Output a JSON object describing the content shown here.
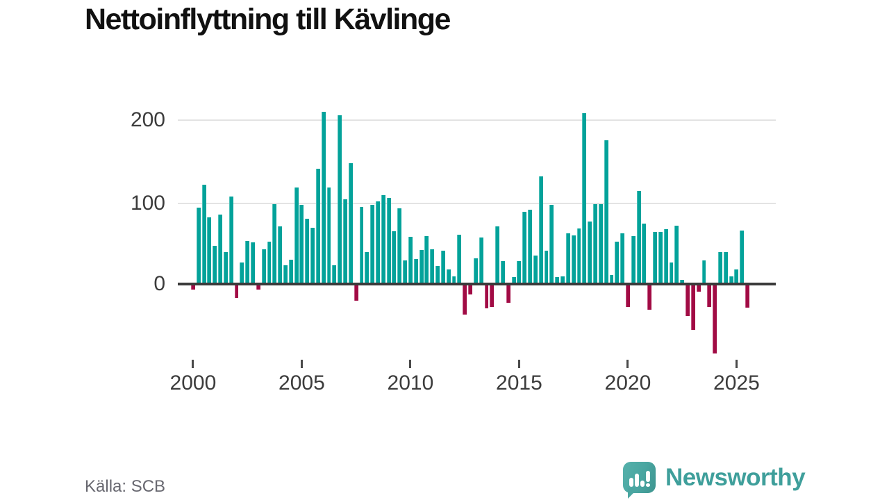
{
  "title": "Nettoinflyttning till Kävlinge",
  "source": "Källa: SCB",
  "logo": {
    "text": "Newsworthy"
  },
  "colors": {
    "positive_bar": "#03a29a",
    "positive_bar_edge": "#4cc0b8",
    "negative_bar": "#a10b44",
    "negative_bar_edge": "#c25380",
    "axis": "#3b3b3b",
    "grid": "#e3e3e3",
    "logo_teal": "#4aa6a1"
  },
  "y_axis": {
    "tick_labels": [
      "200",
      "100",
      "0"
    ],
    "tick_values": [
      200,
      100,
      0
    ]
  },
  "x_axis": {
    "tick_labels": [
      "2000",
      "2005",
      "2010",
      "2015",
      "2020",
      "2025"
    ],
    "tick_years": [
      2000,
      2005,
      2010,
      2015,
      2020,
      2025
    ]
  },
  "chart_data": {
    "type": "bar",
    "title": "Nettoinflyttning till Kävlinge",
    "ylabel": "",
    "xlabel": "",
    "frequency": "quarterly",
    "start_period": "2000Q1",
    "end_period": "2025Q3",
    "grid": "horizontal",
    "ylim": [
      -100,
      235
    ],
    "y_ticks": [
      0,
      100,
      200
    ],
    "x_ticks": [
      2000,
      2005,
      2010,
      2015,
      2020,
      2025
    ],
    "values": [
      -5,
      92,
      120,
      80,
      45,
      83,
      37,
      105,
      -15,
      25,
      51,
      49,
      -5,
      41,
      50,
      96,
      69,
      21,
      28,
      116,
      95,
      78,
      67,
      139,
      209,
      116,
      21,
      205,
      102,
      146,
      -19,
      93,
      37,
      95,
      99,
      107,
      104,
      63,
      91,
      27,
      56,
      29,
      40,
      57,
      41,
      20,
      39,
      16,
      8,
      59,
      -36,
      -11,
      30,
      55,
      -28,
      -26,
      69,
      26,
      -21,
      7,
      26,
      87,
      89,
      33,
      130,
      39,
      95,
      7,
      8,
      60,
      58,
      66,
      207,
      75,
      96,
      96,
      174,
      9,
      50,
      60,
      -26,
      57,
      112,
      72,
      -30,
      62,
      62,
      65,
      25,
      70,
      3,
      -37,
      -54,
      -8,
      27,
      -26,
      -83,
      37,
      37,
      8,
      16,
      64,
      -27
    ]
  }
}
